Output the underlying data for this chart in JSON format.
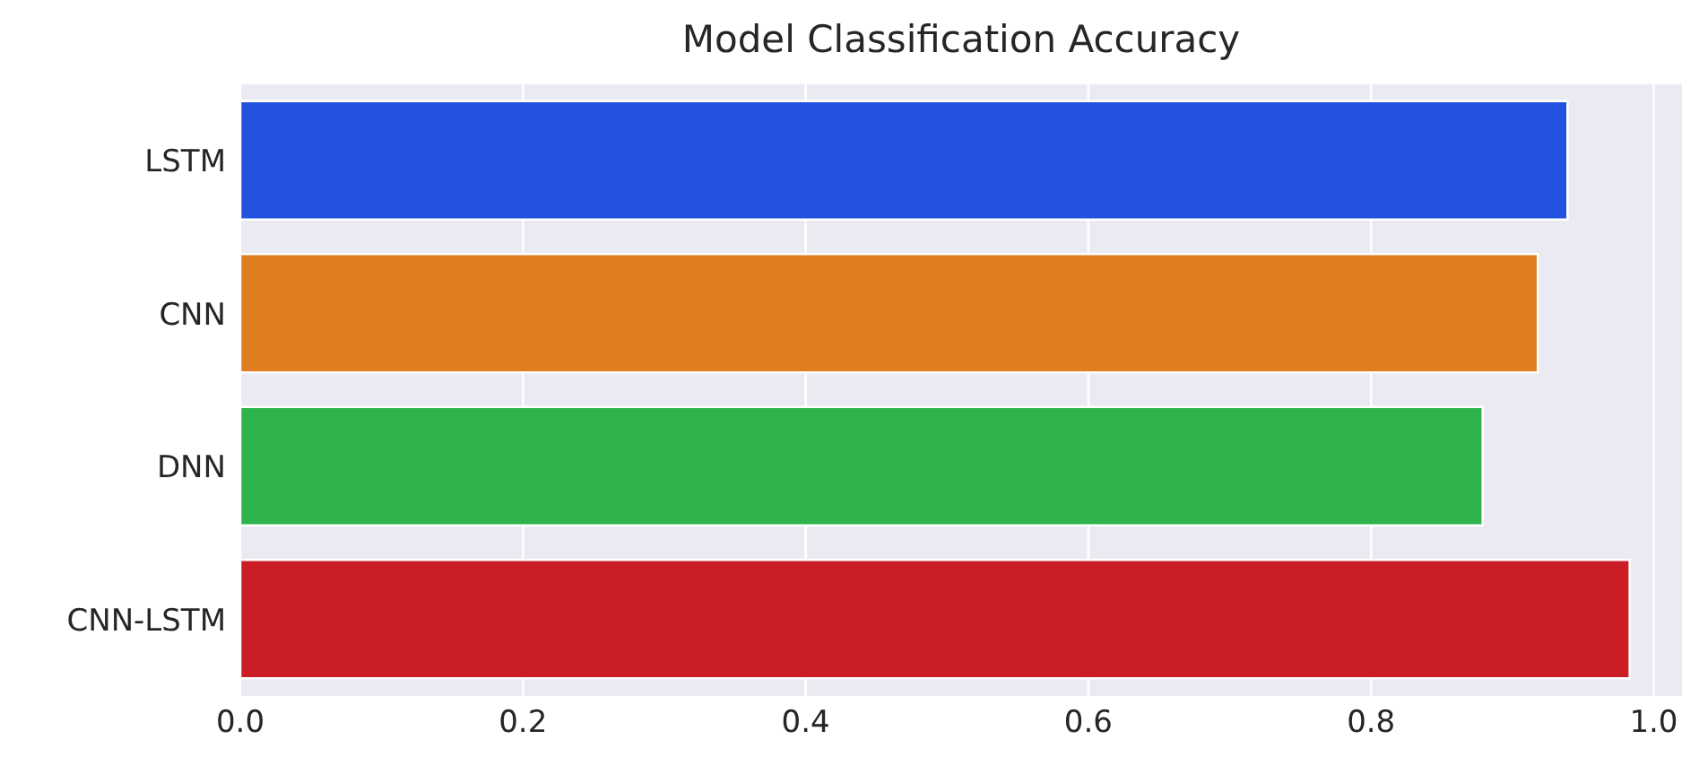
{
  "chart_data": {
    "type": "bar",
    "orientation": "horizontal",
    "title": "Model Classification Accuracy",
    "categories": [
      "LSTM",
      "CNN",
      "DNN",
      "CNN-LSTM"
    ],
    "values": [
      0.939,
      0.918,
      0.879,
      0.983
    ],
    "colors": [
      "#2351e0",
      "#e07d20",
      "#2fb34b",
      "#cb1d26"
    ],
    "xlim": [
      0,
      1.02
    ],
    "xticks": [
      {
        "value": 0,
        "label": "0.0"
      },
      {
        "value": 0.2,
        "label": "0.2"
      },
      {
        "value": 0.4,
        "label": "0.4"
      },
      {
        "value": 0.6,
        "label": "0.6"
      },
      {
        "value": 0.8,
        "label": "0.8"
      },
      {
        "value": 1,
        "label": "1.0"
      }
    ],
    "grid": "x"
  }
}
